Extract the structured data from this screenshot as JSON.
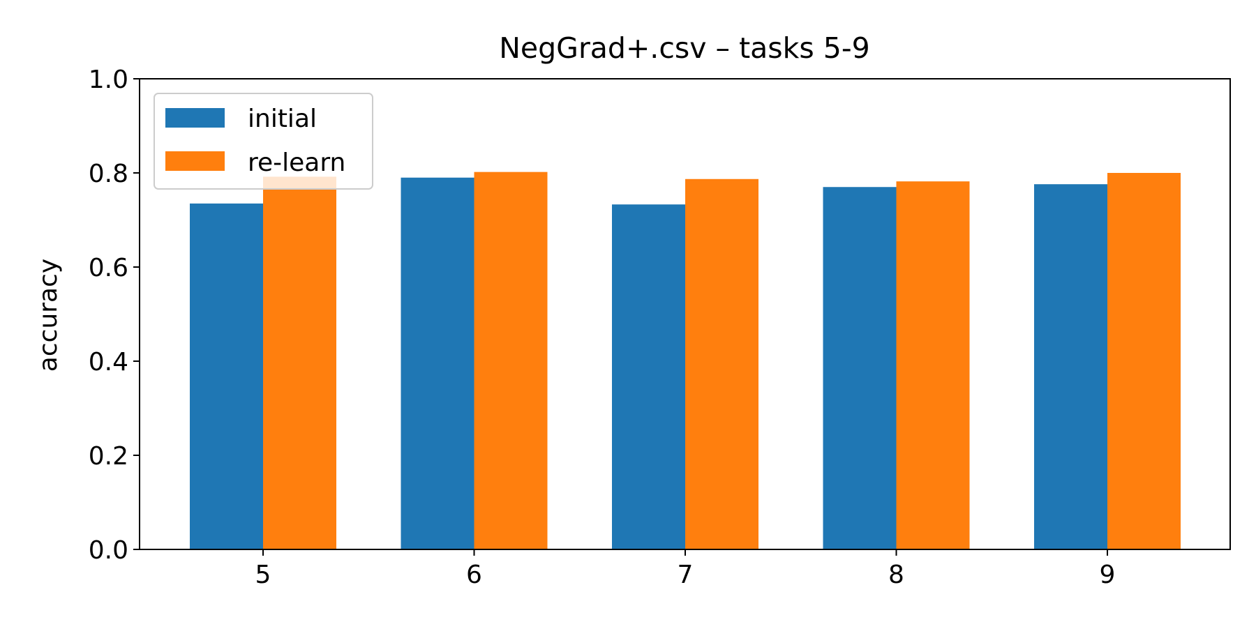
{
  "chart_data": {
    "type": "bar",
    "title": "NegGrad+.csv – tasks 5-9",
    "xlabel": "",
    "ylabel": "accuracy",
    "categories": [
      "5",
      "6",
      "7",
      "8",
      "9"
    ],
    "series": [
      {
        "name": "initial",
        "color": "#1f77b4",
        "values": [
          0.735,
          0.79,
          0.733,
          0.77,
          0.776
        ]
      },
      {
        "name": "re-learn",
        "color": "#ff7f0e",
        "values": [
          0.792,
          0.802,
          0.787,
          0.782,
          0.8
        ]
      }
    ],
    "ylim": [
      0,
      1.0
    ],
    "yticks": [
      "0.0",
      "0.2",
      "0.4",
      "0.6",
      "0.8",
      "1.0"
    ],
    "grid": false,
    "legend_position": "top-left"
  }
}
